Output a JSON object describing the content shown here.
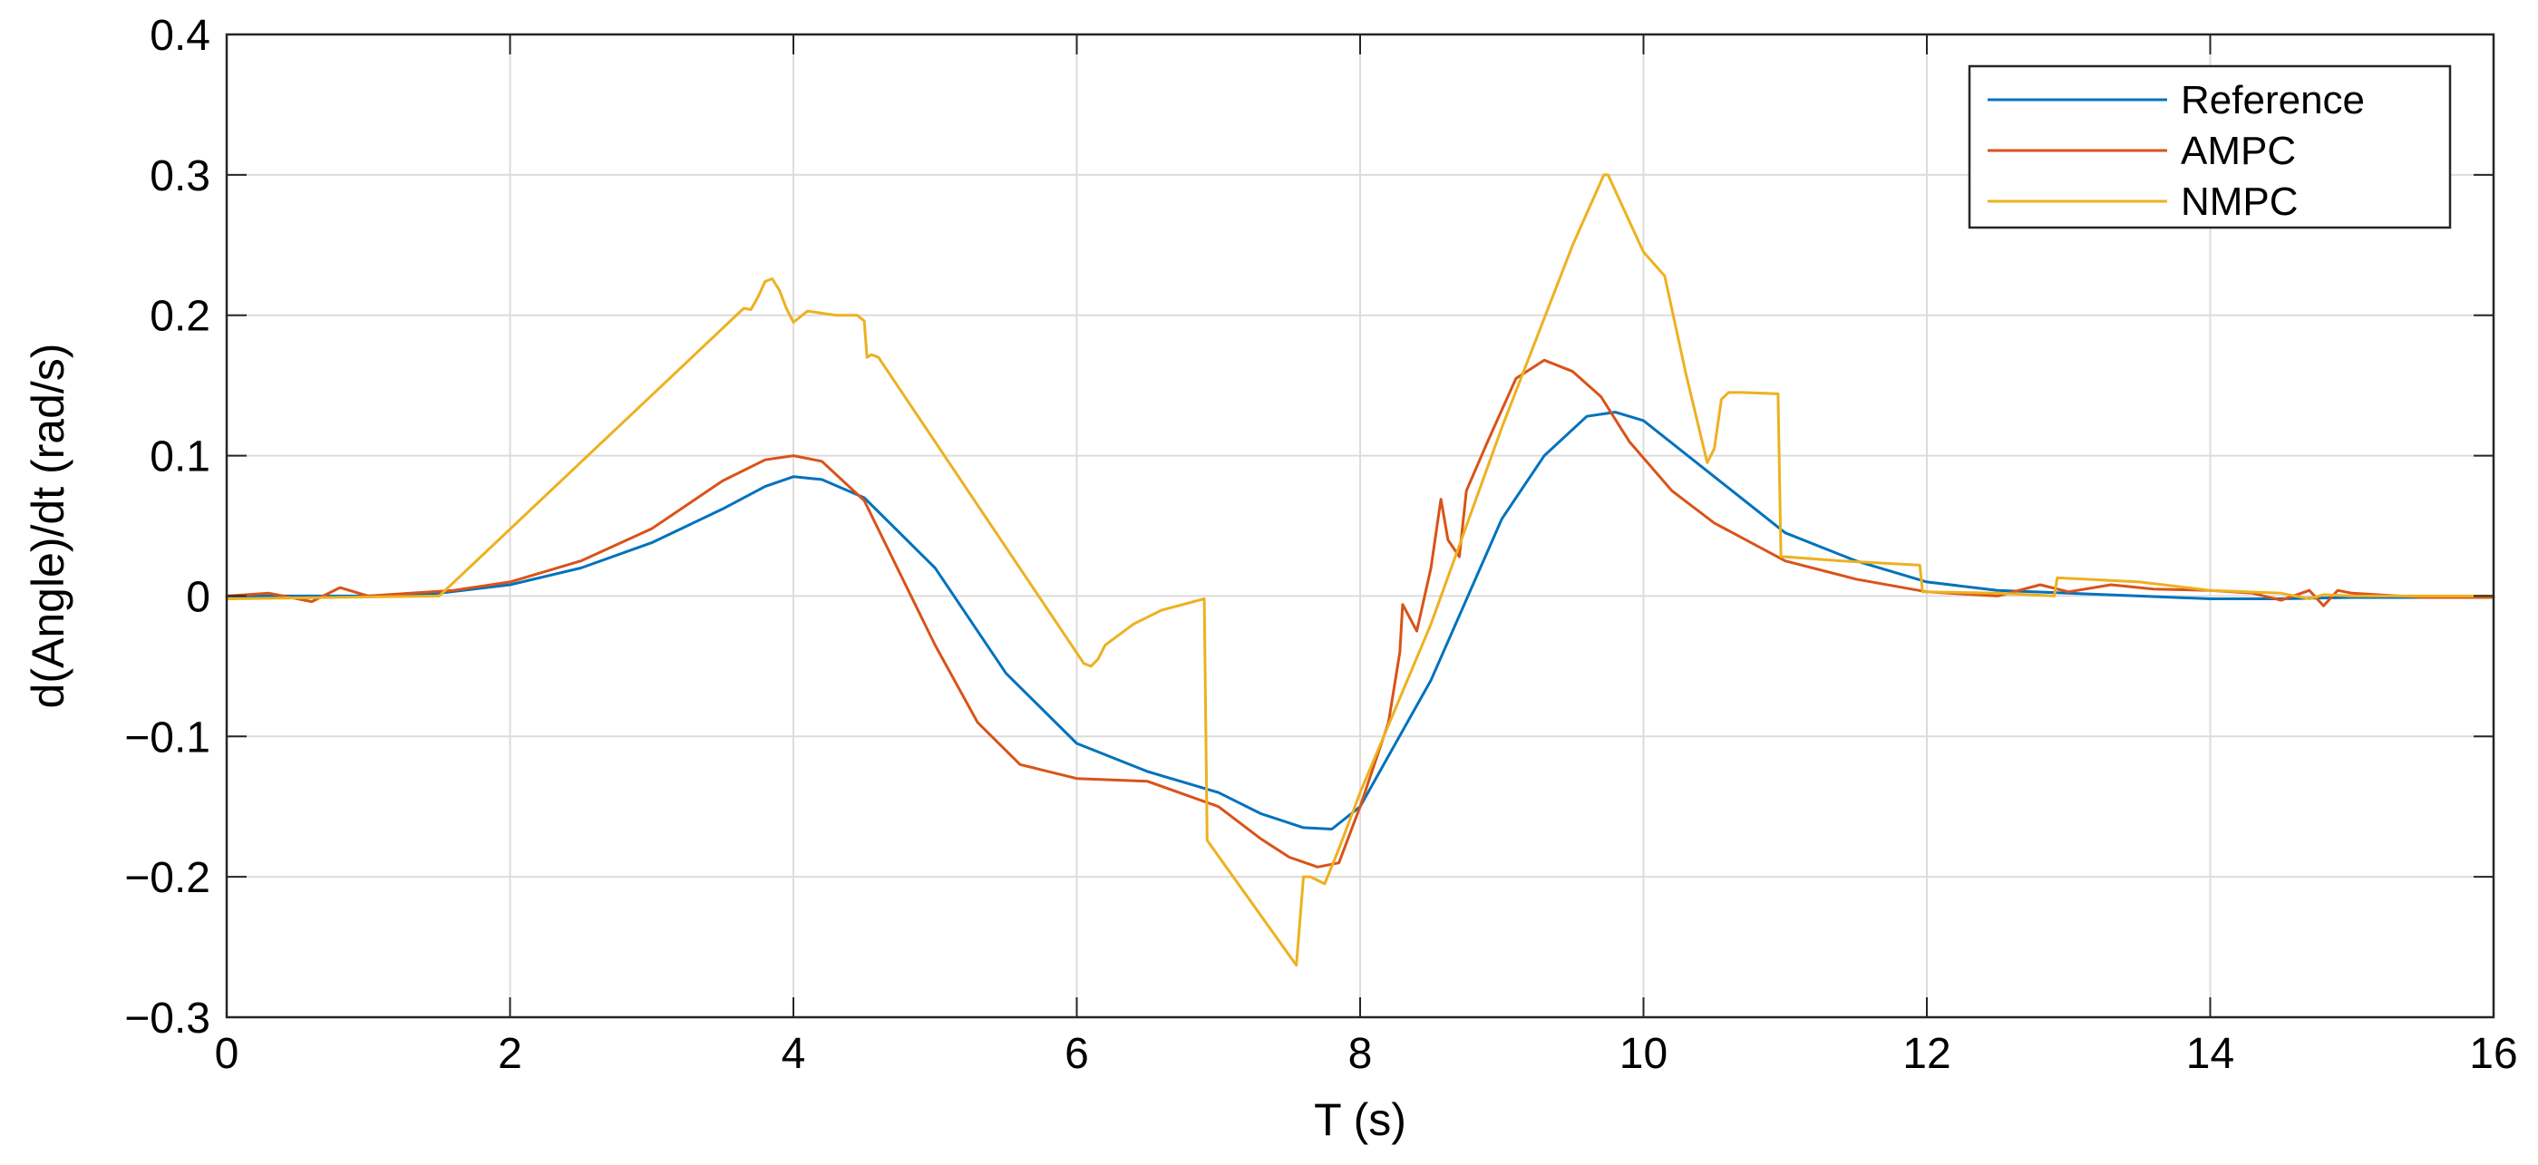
{
  "chart_data": {
    "type": "line",
    "xlabel": "T (s)",
    "ylabel": "d(Angle)/dt (rad/s)",
    "xlim": [
      0,
      16
    ],
    "ylim": [
      -0.3,
      0.4
    ],
    "xticks": [
      0,
      2,
      4,
      6,
      8,
      10,
      12,
      14,
      16
    ],
    "xtick_labels": [
      "0",
      "2",
      "4",
      "6",
      "8",
      "10",
      "12",
      "14",
      "16"
    ],
    "yticks": [
      -0.3,
      -0.2,
      -0.1,
      0,
      0.1,
      0.2,
      0.3,
      0.4
    ],
    "ytick_labels": [
      "−0.3",
      "−0.2",
      "−0.1",
      "0",
      "0.1",
      "0.2",
      "0.3",
      "0.4"
    ],
    "grid": true,
    "legend_position": "top-right",
    "series": [
      {
        "name": "Reference",
        "color": "#0072BD",
        "x": [
          0,
          0.5,
          1,
          1.5,
          2,
          2.5,
          3,
          3.5,
          3.8,
          4,
          4.2,
          4.5,
          5,
          5.5,
          6,
          6.5,
          7,
          7.3,
          7.6,
          7.8,
          8,
          8.5,
          9,
          9.3,
          9.6,
          9.8,
          10,
          10.5,
          11,
          11.5,
          12,
          12.5,
          13,
          13.5,
          14,
          14.5,
          15,
          15.5,
          16
        ],
        "y": [
          0,
          0,
          0,
          0.002,
          0.008,
          0.02,
          0.038,
          0.062,
          0.078,
          0.085,
          0.083,
          0.07,
          0.02,
          -0.055,
          -0.105,
          -0.125,
          -0.14,
          -0.155,
          -0.165,
          -0.166,
          -0.15,
          -0.06,
          0.055,
          0.1,
          0.128,
          0.131,
          0.125,
          0.085,
          0.045,
          0.025,
          0.01,
          0.004,
          0.002,
          0,
          -0.002,
          -0.002,
          -0.001,
          -0.001,
          -0.001
        ]
      },
      {
        "name": "AMPC",
        "color": "#D95319",
        "x": [
          0,
          0.3,
          0.6,
          0.8,
          1,
          1.3,
          1.6,
          2,
          2.5,
          3,
          3.5,
          3.8,
          4,
          4.2,
          4.5,
          5,
          5.3,
          5.6,
          6,
          6.5,
          7,
          7.3,
          7.5,
          7.7,
          7.85,
          8,
          8.2,
          8.28,
          8.3,
          8.4,
          8.5,
          8.57,
          8.62,
          8.7,
          8.75,
          8.9,
          9.1,
          9.3,
          9.5,
          9.7,
          9.9,
          10.2,
          10.5,
          11,
          11.5,
          12,
          12.5,
          12.8,
          13,
          13.3,
          13.6,
          14,
          14.3,
          14.5,
          14.7,
          14.8,
          14.9,
          15,
          15.5,
          16
        ],
        "y": [
          0,
          0.002,
          -0.004,
          0.006,
          0,
          0.002,
          0.004,
          0.01,
          0.025,
          0.048,
          0.082,
          0.097,
          0.1,
          0.096,
          0.068,
          -0.035,
          -0.09,
          -0.12,
          -0.13,
          -0.132,
          -0.15,
          -0.173,
          -0.186,
          -0.193,
          -0.19,
          -0.15,
          -0.09,
          -0.04,
          -0.006,
          -0.025,
          0.02,
          0.069,
          0.04,
          0.028,
          0.075,
          0.11,
          0.155,
          0.168,
          0.16,
          0.142,
          0.11,
          0.075,
          0.052,
          0.025,
          0.012,
          0.003,
          0,
          0.008,
          0.003,
          0.008,
          0.005,
          0.004,
          0.002,
          -0.003,
          0.004,
          -0.007,
          0.004,
          0.002,
          -0.001,
          -0.001
        ]
      },
      {
        "name": "NMPC",
        "color": "#EDB120",
        "x": [
          0,
          1.5,
          3.65,
          3.7,
          3.75,
          3.8,
          3.85,
          3.9,
          3.95,
          4,
          4.1,
          4.3,
          4.45,
          4.5,
          4.52,
          4.55,
          4.6,
          6.05,
          6.1,
          6.15,
          6.2,
          6.4,
          6.6,
          6.9,
          6.92,
          7.55,
          7.6,
          7.65,
          7.75,
          7.85,
          8,
          8.5,
          9,
          9.5,
          9.72,
          9.75,
          10,
          10.15,
          10.3,
          10.45,
          10.5,
          10.55,
          10.6,
          10.7,
          10.95,
          10.97,
          11,
          11.4,
          11.95,
          11.97,
          12.5,
          12.9,
          12.92,
          13.5,
          14,
          14.5,
          14.7,
          14.8,
          15,
          16
        ],
        "y": [
          -0.002,
          0,
          0.205,
          0.204,
          0.213,
          0.224,
          0.226,
          0.218,
          0.205,
          0.195,
          0.203,
          0.2,
          0.2,
          0.196,
          0.17,
          0.172,
          0.17,
          -0.048,
          -0.05,
          -0.045,
          -0.035,
          -0.02,
          -0.01,
          -0.002,
          -0.174,
          -0.263,
          -0.2,
          -0.2,
          -0.205,
          -0.18,
          -0.14,
          -0.02,
          0.12,
          0.25,
          0.3,
          0.3,
          0.245,
          0.228,
          0.158,
          0.095,
          0.105,
          0.14,
          0.145,
          0.145,
          0.144,
          0.028,
          0.028,
          0.025,
          0.022,
          0.003,
          0.002,
          0,
          0.013,
          0.01,
          0.004,
          0.002,
          -0.002,
          0.001,
          0,
          0
        ]
      }
    ]
  }
}
